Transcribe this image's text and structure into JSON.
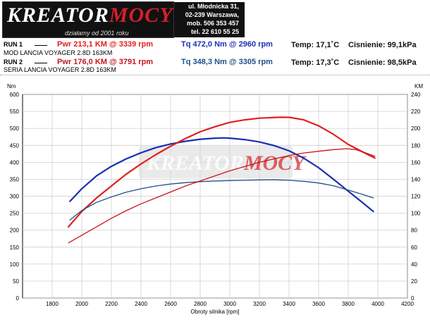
{
  "logo": {
    "brand_left": "KREATOR",
    "brand_right": "MOCY",
    "tagline": "działamy od 2001 roku"
  },
  "contact": {
    "address": "ul. Młodnicka 31,",
    "city": "02-239  Warszawa,",
    "mobile": "mob.  506 353 457",
    "phone": "tel.  22 610 55 25"
  },
  "runs": [
    {
      "label": "RUN 1",
      "name": "MOD LANCIA VOYAGER 2.8D 163KM",
      "power": "Pwr  213,1 KM @ 3339 rpm",
      "torque": "Tq 472,0 Nm @ 2960 rpm",
      "temp": "Temp: 17,1˚C",
      "pressure": "Cisnienie: 99,1kPa"
    },
    {
      "label": "RUN 2",
      "name": "SERIA LANCIA VOYAGER 2.8D 163KM",
      "power": "Pwr  176,0 KM @ 3791 rpm",
      "torque": "Tq 348,3 Nm @ 3305 rpm",
      "temp": "Temp: 17,3˚C",
      "pressure": "Cisnienie: 98,5kPa"
    }
  ],
  "colors": {
    "run1_power": "#e0201e",
    "run1_torque": "#1a2fb5",
    "run2_power": "#c8161c",
    "run2_torque": "#1f4f8a"
  },
  "chart_data": {
    "type": "line",
    "xlabel": "Obroty silnika [rpm]",
    "ylabel_left": "Nm",
    "ylabel_right": "KM",
    "xlim": [
      1600,
      4200
    ],
    "x_ticks": [
      1800,
      2000,
      2200,
      2400,
      2600,
      2800,
      3000,
      3200,
      3400,
      3600,
      3800,
      4000,
      4200
    ],
    "ylim_left": [
      0,
      600
    ],
    "y_ticks_left": [
      0,
      50,
      100,
      150,
      200,
      250,
      300,
      350,
      400,
      450,
      500,
      550,
      600
    ],
    "ylim_right": [
      0,
      240
    ],
    "y_ticks_right": [
      0,
      20,
      40,
      60,
      80,
      100,
      120,
      140,
      160,
      180,
      200,
      220,
      240
    ],
    "grid": true,
    "watermark_left": "KREATOR",
    "watermark_right": "MOCY",
    "series": [
      {
        "axis": "left",
        "x": [
          1920,
          2000,
          2100,
          2200,
          2300,
          2400,
          2500,
          2600,
          2700,
          2800,
          2900,
          2960,
          3000,
          3100,
          3200,
          3300,
          3400,
          3500,
          3600,
          3700,
          3800,
          3900,
          3970
        ],
        "y": [
          285,
          322,
          360,
          388,
          410,
          428,
          443,
          454,
          462,
          468,
          471,
          472,
          471,
          467,
          460,
          449,
          434,
          412,
          384,
          350,
          315,
          280,
          255
        ]
      },
      {
        "axis": "right",
        "x": [
          1910,
          2000,
          2100,
          2200,
          2300,
          2400,
          2500,
          2600,
          2700,
          2800,
          2900,
          3000,
          3100,
          3200,
          3339,
          3400,
          3500,
          3600,
          3700,
          3800,
          3900,
          3980
        ],
        "y": [
          84,
          102,
          118,
          132,
          146,
          158,
          169,
          179,
          188,
          196,
          202,
          207,
          210,
          212,
          213.1,
          213,
          210,
          203,
          193,
          181,
          172,
          165
        ]
      },
      {
        "axis": "left",
        "x": [
          1920,
          2000,
          2100,
          2200,
          2300,
          2400,
          2500,
          2600,
          2700,
          2800,
          2900,
          3000,
          3100,
          3200,
          3305,
          3400,
          3500,
          3600,
          3700,
          3800,
          3900,
          3970
        ],
        "y": [
          230,
          258,
          282,
          298,
          312,
          322,
          330,
          336,
          340,
          343,
          345,
          346,
          347,
          348,
          348.3,
          347,
          344,
          339,
          331,
          318,
          305,
          295
        ]
      },
      {
        "axis": "right",
        "x": [
          1910,
          2000,
          2100,
          2200,
          2300,
          2400,
          2500,
          2600,
          2700,
          2800,
          2900,
          3000,
          3100,
          3200,
          3300,
          3400,
          3500,
          3600,
          3700,
          3791,
          3850,
          3920,
          3980
        ],
        "y": [
          65,
          74,
          84,
          94,
          103,
          111,
          118,
          125,
          132,
          138,
          144,
          150,
          155,
          160,
          164,
          168,
          171,
          173,
          175,
          176,
          175,
          171,
          167
        ]
      }
    ]
  }
}
